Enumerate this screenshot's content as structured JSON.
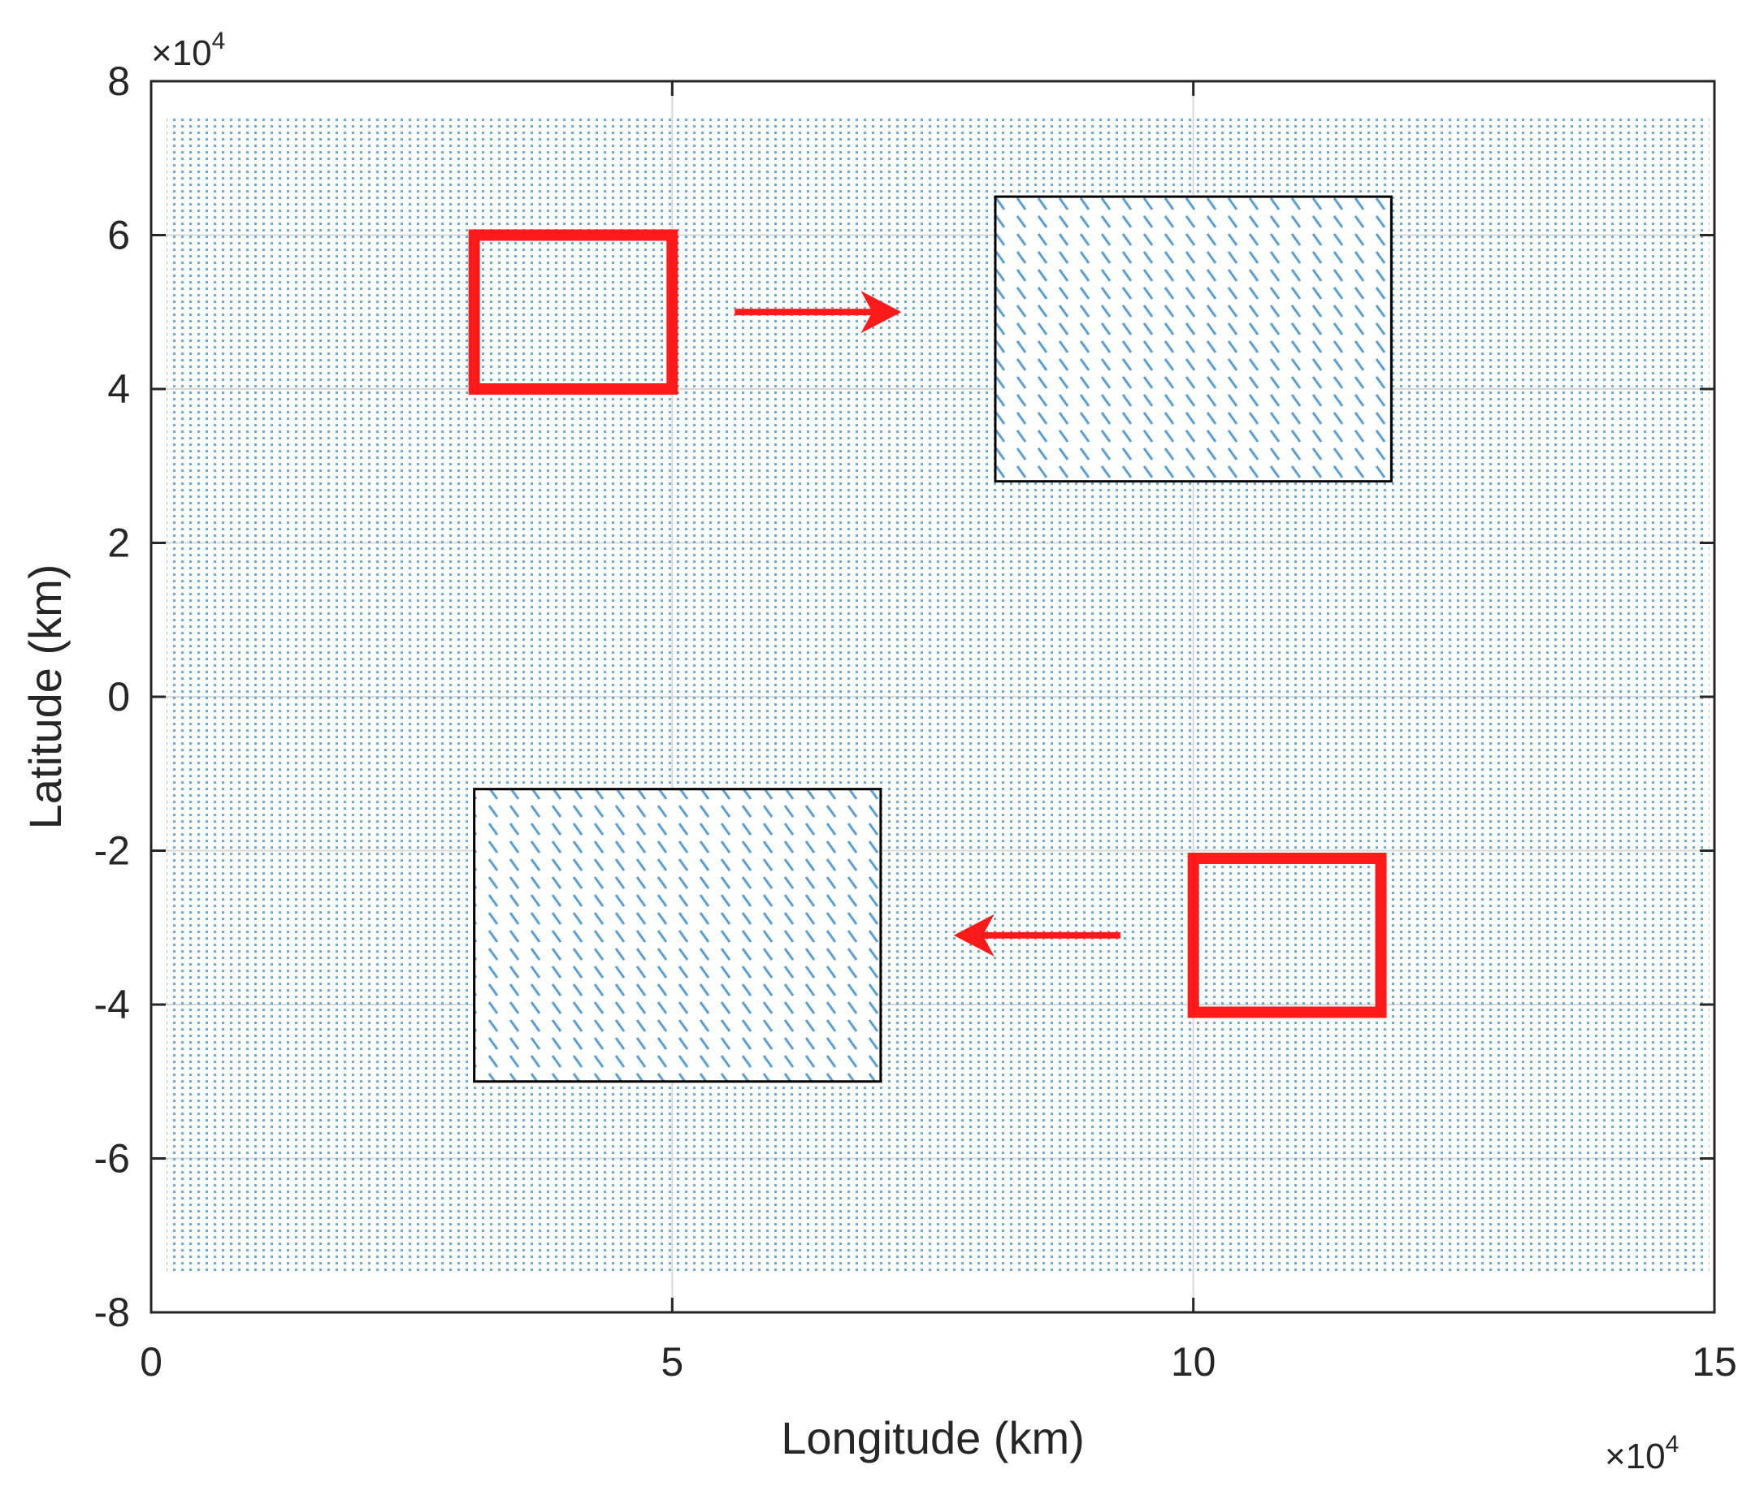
{
  "chart_data": {
    "type": "scatter",
    "title": "",
    "xlabel": "Longitude (km)",
    "ylabel": "Latitude (km)",
    "x_exponent": {
      "prefix": "×10",
      "power": "4"
    },
    "y_exponent": {
      "prefix": "×10",
      "power": "4"
    },
    "xlim": [
      0,
      15
    ],
    "ylim": [
      -8,
      8
    ],
    "x_ticks": [
      0,
      5,
      10,
      15
    ],
    "y_ticks": [
      8,
      6,
      4,
      2,
      0,
      -2,
      -4,
      -6,
      -8
    ],
    "x_tick_labels": [
      "0",
      "5",
      "10",
      "15"
    ],
    "y_tick_labels": [
      "8",
      "6",
      "4",
      "2",
      "0",
      "-2",
      "-4",
      "-6",
      "-8"
    ],
    "grid": true,
    "colors": {
      "points": "#3b8fd1",
      "zoom_box": "#000000",
      "highlight": "#ff1a1a",
      "grid": "#d9d9d9",
      "axes": "#262626"
    },
    "point_grid": {
      "x_range": [
        0.15,
        14.95
      ],
      "y_range": [
        -7.5,
        7.55
      ],
      "note": "dense uniform scatter field"
    },
    "highlight_boxes": [
      {
        "name": "highlight-box-upper",
        "x": [
          3.1,
          5.0
        ],
        "y": [
          4.0,
          6.0
        ]
      },
      {
        "name": "highlight-box-lower",
        "x": [
          10.0,
          11.8
        ],
        "y": [
          -4.1,
          -2.1
        ]
      }
    ],
    "zoom_boxes": [
      {
        "name": "zoom-box-upper",
        "x": [
          8.1,
          11.9
        ],
        "y": [
          2.8,
          6.5
        ]
      },
      {
        "name": "zoom-box-lower",
        "x": [
          3.1,
          7.0
        ],
        "y": [
          -5.0,
          -1.2
        ]
      }
    ],
    "arrows": [
      {
        "name": "arrow-right",
        "from": [
          5.6,
          5.0
        ],
        "to": [
          7.2,
          5.0
        ]
      },
      {
        "name": "arrow-left",
        "from": [
          9.3,
          -3.1
        ],
        "to": [
          7.7,
          -3.1
        ]
      }
    ]
  }
}
